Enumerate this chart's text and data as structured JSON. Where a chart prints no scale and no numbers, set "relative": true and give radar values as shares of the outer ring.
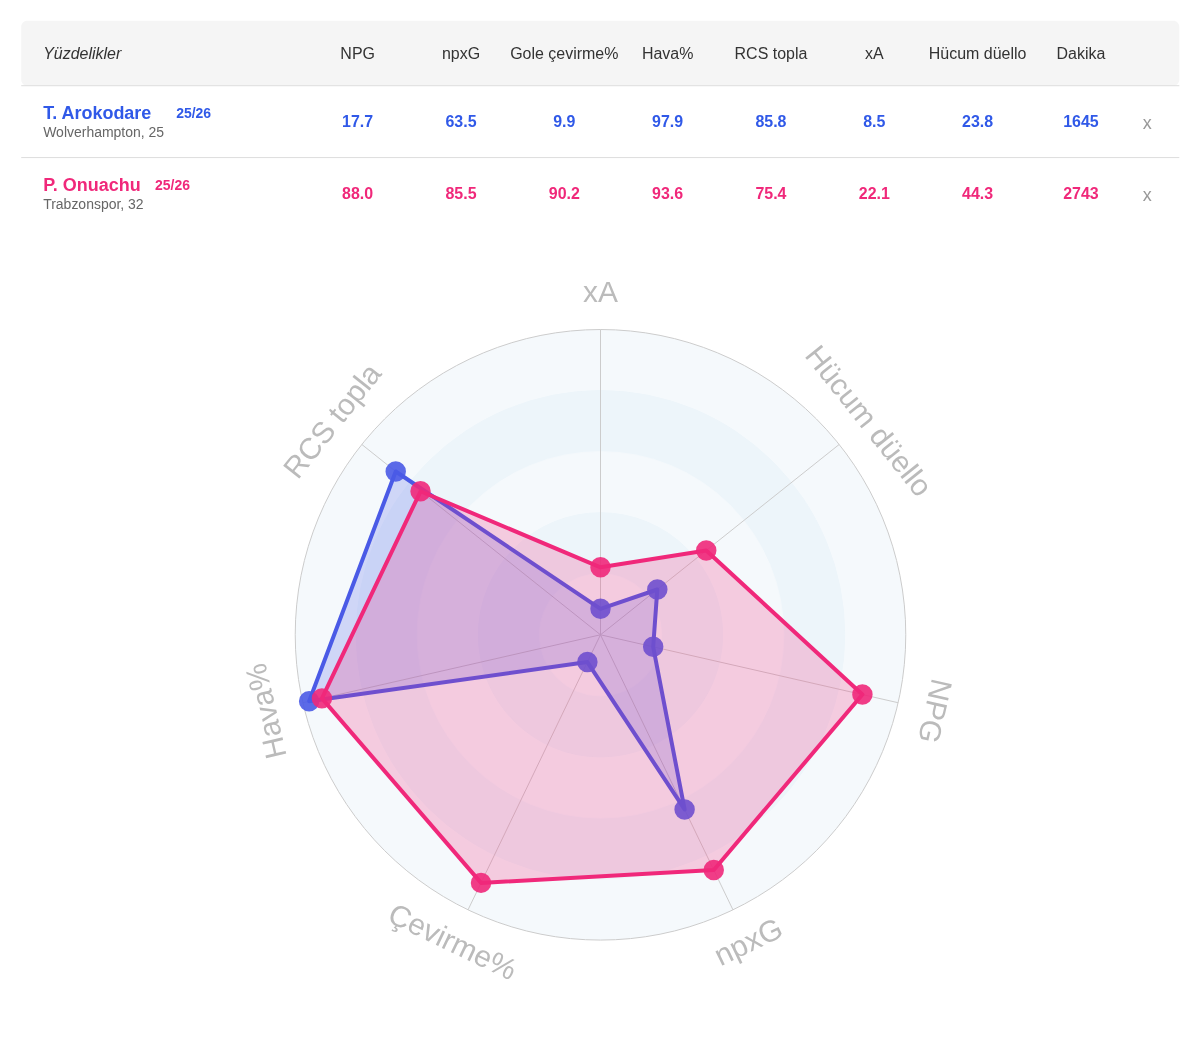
{
  "chart_data": [
    {
      "type": "other",
      "title": "Yüzdelikler",
      "categories": [
        "NPG",
        "npxG",
        "Gole çevirme%",
        "Hava%",
        "RCS topla",
        "xA",
        "Hücum düello",
        "Dakika"
      ],
      "series": [
        {
          "name": "T. Arokodare",
          "color": "#3059e8",
          "values": [
            17.7,
            63.5,
            9.9,
            97.9,
            85.8,
            8.5,
            23.8,
            1645
          ],
          "value_labels": [
            "17.7",
            "63.5",
            "9.9",
            "97.9",
            "85.8",
            "8.5",
            "23.8",
            "1645"
          ]
        },
        {
          "name": "P. Onuachu",
          "color": "#f0287a",
          "values": [
            88.0,
            85.5,
            90.2,
            93.6,
            75.4,
            22.1,
            44.3,
            2743
          ],
          "value_labels": [
            "88.0",
            "85.5",
            "90.2",
            "93.6",
            "75.4",
            "22.1",
            "44.3",
            "2743"
          ]
        }
      ],
      "annotations": [
        "25/26",
        "Wolverhampton, 25",
        "25/26",
        "Trabzonspor, 32",
        "x",
        "x"
      ]
    },
    {
      "type": "radar",
      "categories": [
        "xA",
        "Hücum düello",
        "NPG",
        "npxG",
        "Çevirme%",
        "Hava%",
        "RCS topla"
      ],
      "series": [
        {
          "color": "#4a5ae6",
          "values": [
            0.085,
            0.238,
            0.177,
            0.635,
            0.099,
            0.979,
            0.858
          ]
        },
        {
          "color": "#f0287a",
          "values": [
            0.221,
            0.443,
            0.88,
            0.855,
            0.902,
            0.936,
            0.754
          ]
        }
      ],
      "relative": true,
      "grid": true,
      "marker": "circle"
    }
  ]
}
